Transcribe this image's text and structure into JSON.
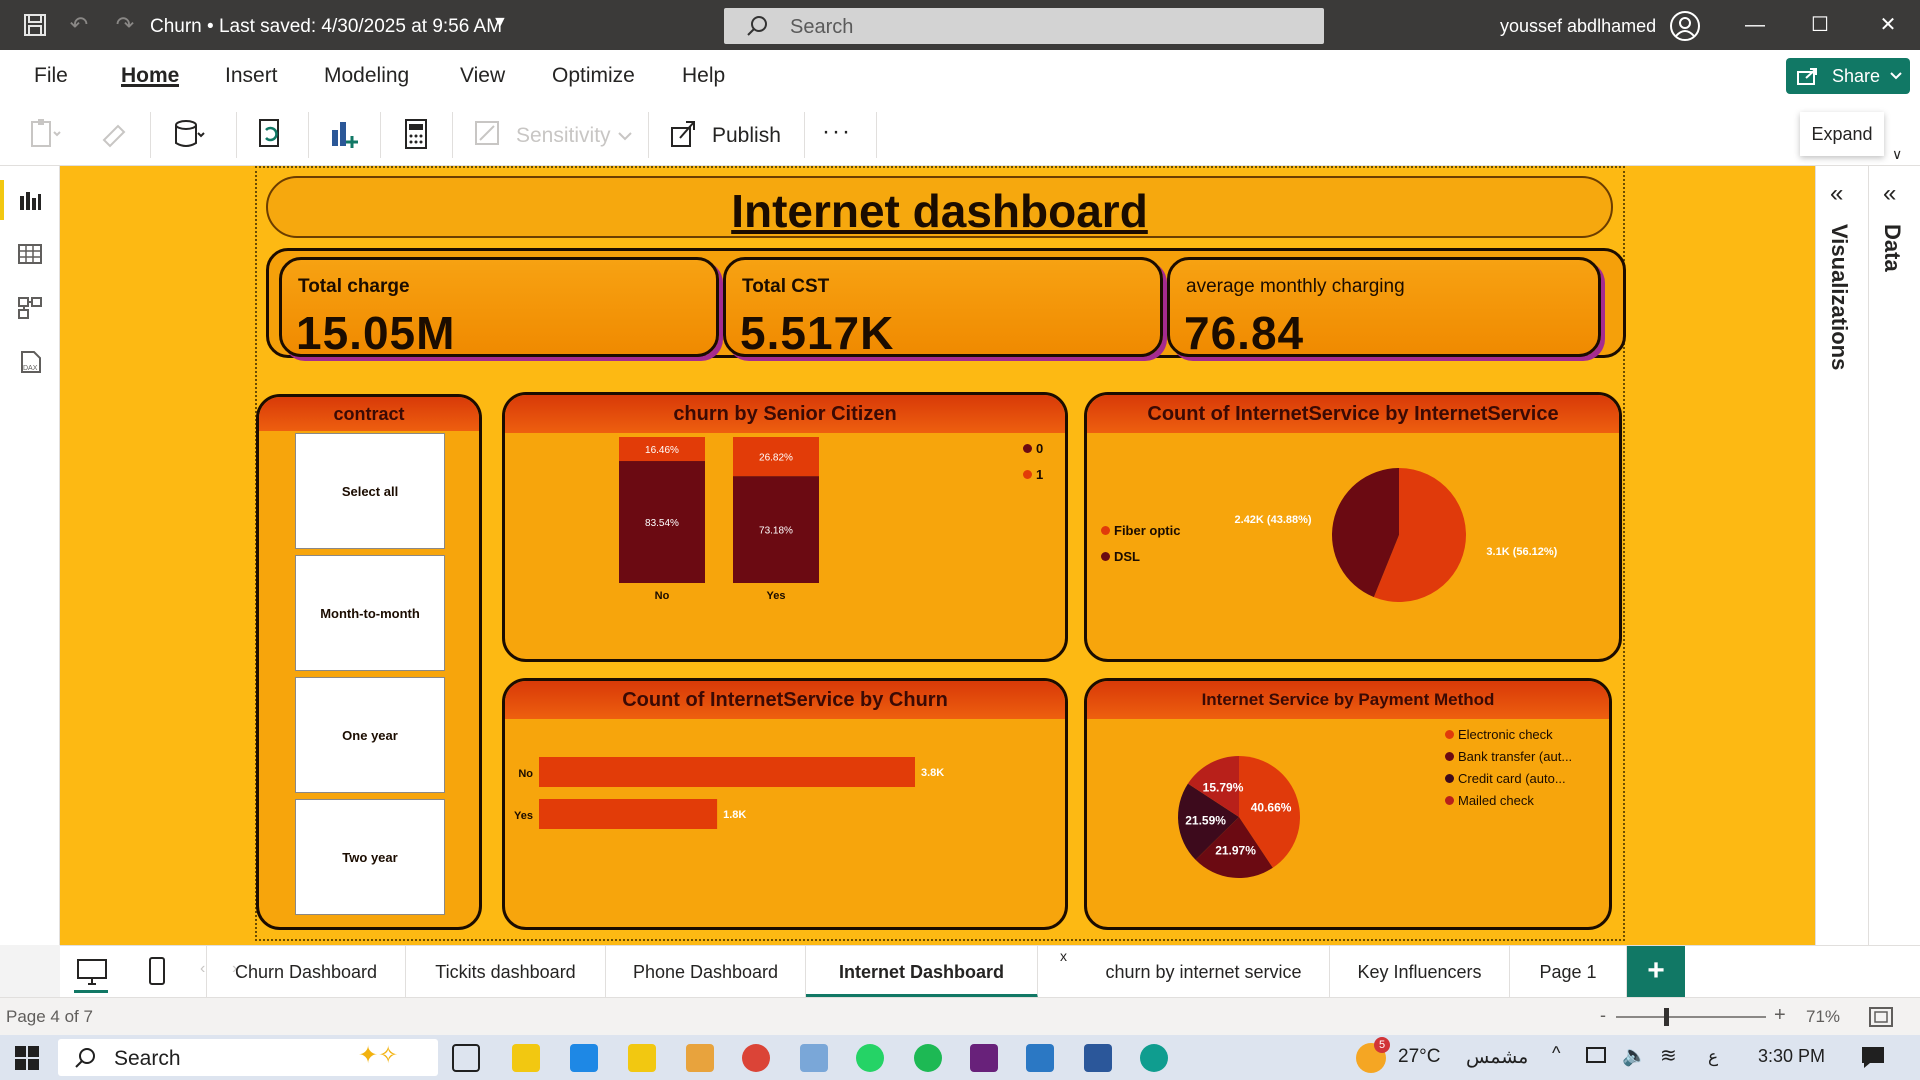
{
  "titlebar": {
    "doc_title": "Churn • Last saved: 4/30/2025 at 9:56 AM",
    "search_placeholder": "Search",
    "user_name": "youssef abdlhamed"
  },
  "menu": {
    "items": [
      "File",
      "Home",
      "Insert",
      "Modeling",
      "View",
      "Optimize",
      "Help"
    ],
    "active": "Home",
    "share_label": "Share"
  },
  "toolbar": {
    "sensitivity_label": "Sensitivity",
    "publish_label": "Publish",
    "more_label": "···",
    "expand_tooltip": "Expand"
  },
  "report": {
    "title": "Internet dashboard",
    "kpis": [
      {
        "label": "Total charge",
        "value": "15.05M"
      },
      {
        "label": "Total CST",
        "value": "5.517K"
      },
      {
        "label": "average monthly charging",
        "value": "76.84"
      }
    ],
    "slicer": {
      "title": "contract",
      "options": [
        "Select all",
        "Month-to-month",
        "One year",
        "Two year"
      ]
    }
  },
  "chart_data": [
    {
      "type": "bar",
      "stacked": "100%",
      "title": "churn by Senior Citizen",
      "categories": [
        "No",
        "Yes"
      ],
      "series": [
        {
          "name": "0",
          "values": [
            83.54,
            73.18
          ],
          "labels": [
            "83.54%",
            "73.18%"
          ],
          "color": "#6b0a12"
        },
        {
          "name": "1",
          "values": [
            16.46,
            26.82
          ],
          "labels": [
            "16.46%",
            "26.82%"
          ],
          "color": "#e23c08"
        }
      ],
      "legend": "top-right"
    },
    {
      "type": "pie",
      "title": "Count of InternetService by InternetService",
      "slices": [
        {
          "name": "Fiber optic",
          "value": 3100,
          "percent": 56.12,
          "label": "3.1K (56.12%)",
          "color": "#e03a0b"
        },
        {
          "name": "DSL",
          "value": 2420,
          "percent": 43.88,
          "label": "2.42K (43.88%)",
          "color": "#6b0a12"
        }
      ],
      "legend": "left"
    },
    {
      "type": "bar",
      "orientation": "horizontal",
      "title": "Count of InternetService by Churn",
      "categories": [
        "No",
        "Yes"
      ],
      "values": [
        3800,
        1800
      ],
      "labels": [
        "3.8K",
        "1.8K"
      ],
      "color": "#e23c08"
    },
    {
      "type": "pie",
      "title": "Internet Service by Payment Method",
      "slices": [
        {
          "name": "Electronic check",
          "percent": 40.66,
          "label": "40.66%",
          "color": "#e03a0b"
        },
        {
          "name": "Bank transfer (aut...",
          "percent": 21.97,
          "label": "21.97%",
          "color": "#6b0a12"
        },
        {
          "name": "Credit card (auto...",
          "percent": 21.59,
          "label": "21.59%",
          "color": "#3d0a1c"
        },
        {
          "name": "Mailed check",
          "percent": 15.79,
          "label": "15.79%",
          "color": "#b8201a"
        }
      ],
      "legend": "right"
    }
  ],
  "tabs": {
    "items": [
      "Churn Dashboard",
      "Tickits dashboard",
      "Phone Dashboard",
      "Internet Dashboard",
      "churn by internet service",
      "Key Influencers",
      "Page 1"
    ],
    "active": "Internet Dashboard",
    "close_label": "x",
    "add_label": "+"
  },
  "status": {
    "page_indicator": "Page 4 of 7",
    "zoom_level": "71%"
  },
  "panes": {
    "visualizations": "Visualizations",
    "data": "Data"
  },
  "taskbar": {
    "search_label": "Search",
    "weather_badge": "5",
    "temperature": "27°C",
    "weather_desc": "مشمس",
    "language": "ع",
    "time": "3:30 PM"
  },
  "colors": {
    "canvas": "#fdb913",
    "accent": "#117865",
    "header_red": "#d83a08",
    "dark_red": "#6b0a12"
  }
}
